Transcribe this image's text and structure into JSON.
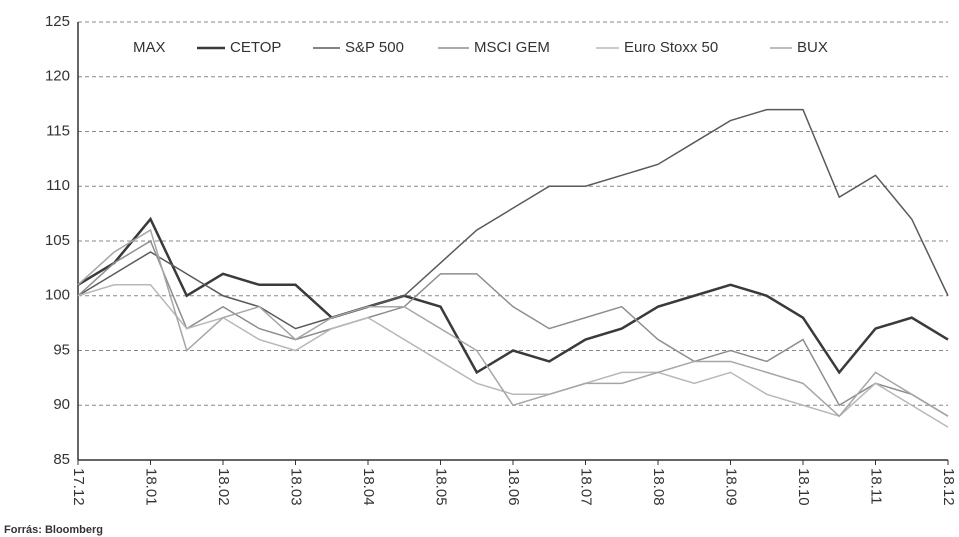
{
  "chart_data": {
    "type": "line",
    "legend_title": "MAX",
    "source": "Forrás: Bloomberg",
    "categories": [
      "17.12",
      null,
      "18.01",
      null,
      "18.02",
      null,
      "18.03",
      null,
      "18.04",
      null,
      "18.05",
      null,
      "18.06",
      null,
      "18.07",
      null,
      "18.08",
      null,
      "18.09",
      null,
      "18.10",
      null,
      "18.11",
      null,
      "18.12"
    ],
    "series": [
      {
        "name": "CETOP",
        "color": "#3a3a3a",
        "values": [
          101,
          103,
          107,
          100,
          102,
          101,
          101,
          98,
          99,
          100,
          99,
          93,
          95,
          94,
          96,
          97,
          99,
          100,
          101,
          100,
          98,
          93,
          97,
          98,
          96
        ]
      },
      {
        "name": "S&P 500",
        "color": "#5a5a5a",
        "values": [
          100,
          102,
          104,
          102,
          100,
          99,
          97,
          98,
          99,
          100,
          103,
          106,
          108,
          110,
          110,
          111,
          112,
          114,
          116,
          117,
          117,
          109,
          111,
          107,
          100
        ]
      },
      {
        "name": "MSCI GEM",
        "color": "#8e8e8e",
        "values": [
          100,
          103,
          105,
          97,
          99,
          97,
          96,
          97,
          98,
          99,
          102,
          102,
          99,
          97,
          98,
          99,
          96,
          94,
          95,
          94,
          96,
          90,
          92,
          91,
          89
        ]
      },
      {
        "name": "Euro Stoxx 50",
        "color": "#b8b8b8",
        "values": [
          100,
          101,
          101,
          97,
          98,
          96,
          95,
          97,
          98,
          96,
          94,
          92,
          91,
          91,
          92,
          93,
          93,
          92,
          93,
          91,
          90,
          89,
          92,
          90,
          88
        ]
      },
      {
        "name": "BUX",
        "color": "#a6a6a6",
        "values": [
          101,
          104,
          106,
          95,
          98,
          99,
          96,
          98,
          99,
          99,
          97,
          95,
          90,
          91,
          92,
          92,
          93,
          94,
          94,
          93,
          92,
          89,
          93,
          91,
          89
        ]
      }
    ],
    "ylim": [
      85,
      125
    ],
    "yticks": [
      85,
      90,
      95,
      100,
      105,
      110,
      115,
      120,
      125
    ],
    "grid": true
  }
}
